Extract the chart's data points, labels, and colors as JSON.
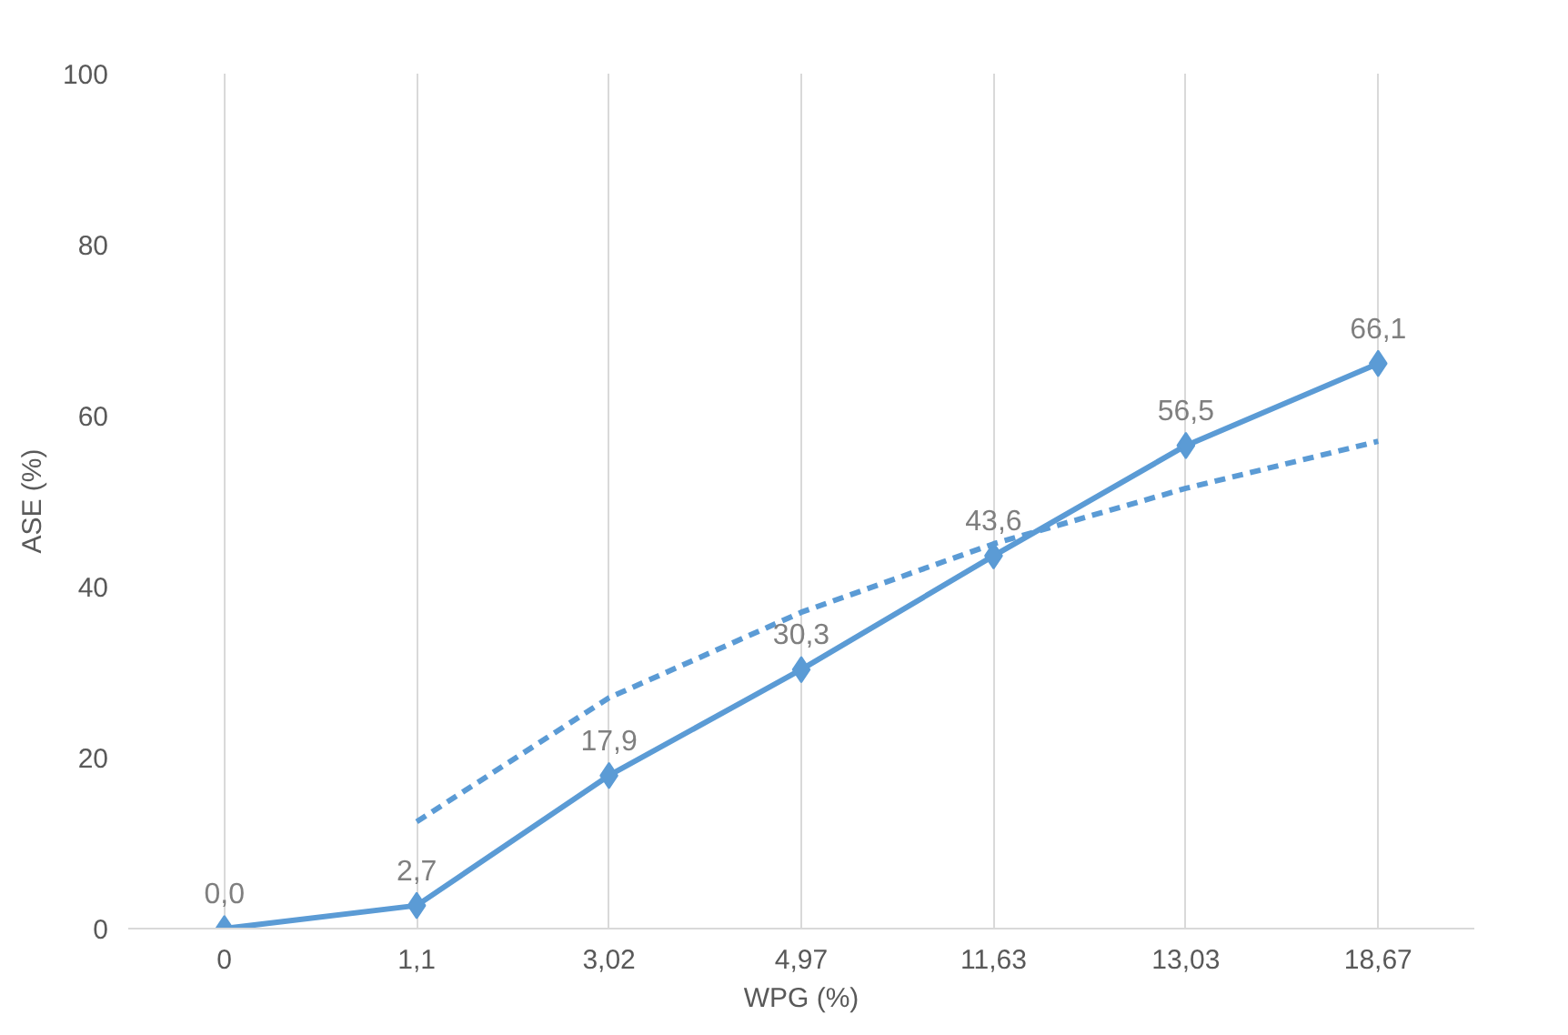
{
  "chart_data": {
    "type": "line",
    "xlabel": "WPG (%)",
    "ylabel": "ASE (%)",
    "categories": [
      "0",
      "1,1",
      "3,02",
      "4,97",
      "11,63",
      "13,03",
      "18,67"
    ],
    "series": [
      {
        "color": "#5b9bd5",
        "marker": "diamond",
        "line_style": "solid",
        "values": [
          0.0,
          2.7,
          17.9,
          30.3,
          43.6,
          56.5,
          66.1
        ],
        "value_labels": [
          "0,0",
          "2,7",
          "17,9",
          "30,3",
          "43,6",
          "56,5",
          "66,1"
        ]
      },
      {
        "color": "#5b9bd5",
        "marker": "none",
        "line_style": "dashed",
        "x": [
          "1,1",
          "3,02",
          "4,97",
          "11,63",
          "13,03",
          "18,67"
        ],
        "values": [
          12.5,
          27,
          37,
          45,
          51.5,
          57
        ]
      }
    ],
    "ylim": [
      0,
      100
    ],
    "yticks": [
      0,
      20,
      40,
      60,
      80,
      100
    ],
    "grid": "x"
  }
}
